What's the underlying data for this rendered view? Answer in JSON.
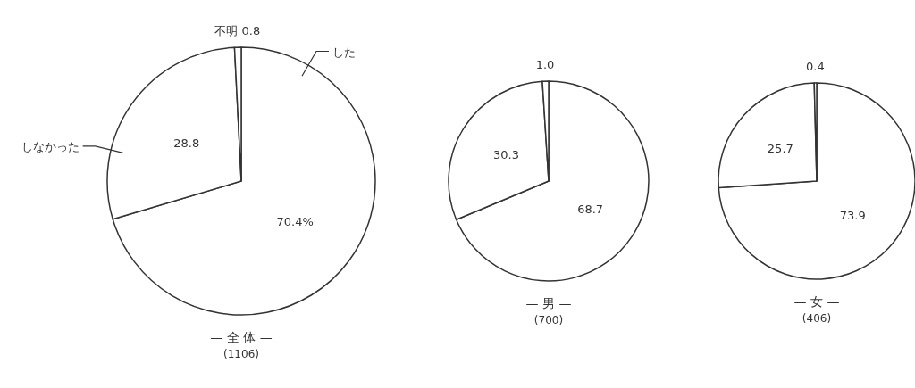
{
  "chart_data": [
    {
      "type": "pie",
      "title": "— 全 体 —",
      "subtitle": "(1106)",
      "categories": [
        "した",
        "しなかった",
        "不明"
      ],
      "values": [
        70.4,
        28.8,
        0.8
      ],
      "colors": [
        "#ffffff",
        "#ffffff",
        "#ffffff"
      ],
      "value_labels": [
        "70.4%",
        "28.8",
        "0.8"
      ]
    },
    {
      "type": "pie",
      "title": "— 男 —",
      "subtitle": "(700)",
      "categories": [
        null,
        null,
        null
      ],
      "values": [
        68.7,
        30.3,
        1.0
      ],
      "colors": [
        "#ffffff",
        "#ffffff",
        "#ffffff"
      ],
      "value_labels": [
        "68.7",
        "30.3",
        "1.0"
      ]
    },
    {
      "type": "pie",
      "title": "— 女 —",
      "subtitle": "(406)",
      "categories": [
        null,
        null,
        null
      ],
      "values": [
        73.9,
        25.7,
        0.4
      ],
      "colors": [
        "#ffffff",
        "#ffffff",
        "#ffffff"
      ],
      "value_labels": [
        "73.9",
        "25.7",
        "0.4"
      ]
    }
  ]
}
